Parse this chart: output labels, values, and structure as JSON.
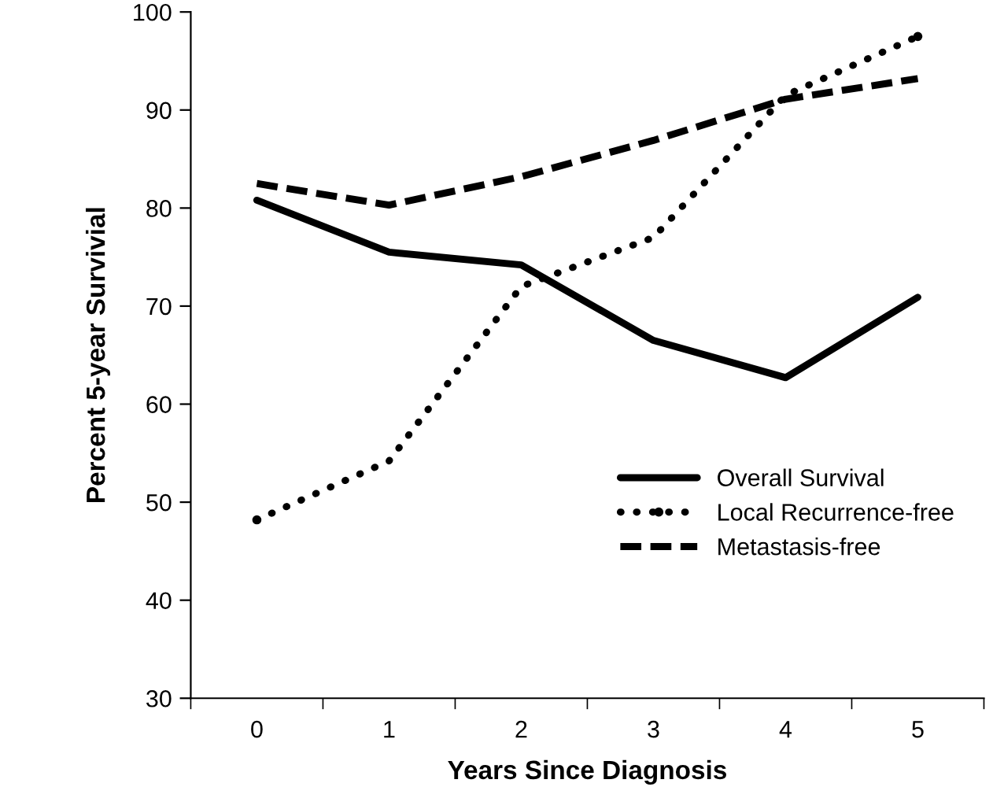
{
  "chart_data": {
    "type": "line",
    "xlabel": "Years Since Diagnosis",
    "ylabel": "Percent 5-year Survivial",
    "categories": [
      "0",
      "1",
      "2",
      "3",
      "4",
      "5"
    ],
    "series": [
      {
        "name": "Overall Survival",
        "color": "#000000",
        "line_style": "solid",
        "values": [
          80.8,
          75.5,
          74.2,
          66.5,
          62.7,
          70.9
        ]
      },
      {
        "name": "Local Recurrence-free",
        "color": "#000000",
        "line_style": "dotted",
        "values": [
          48.2,
          54.2,
          72,
          77,
          91.5,
          97.5
        ]
      },
      {
        "name": "Metastasis-free",
        "color": "#000000",
        "line_style": "dashed",
        "values": [
          82.5,
          80.3,
          83.2,
          86.9,
          91.1,
          93.2
        ]
      }
    ],
    "ylim": [
      30,
      100
    ],
    "yticks": [
      30,
      40,
      50,
      60,
      70,
      80,
      90,
      100
    ],
    "grid": false,
    "legend": "bottom right",
    "marker": "none"
  }
}
